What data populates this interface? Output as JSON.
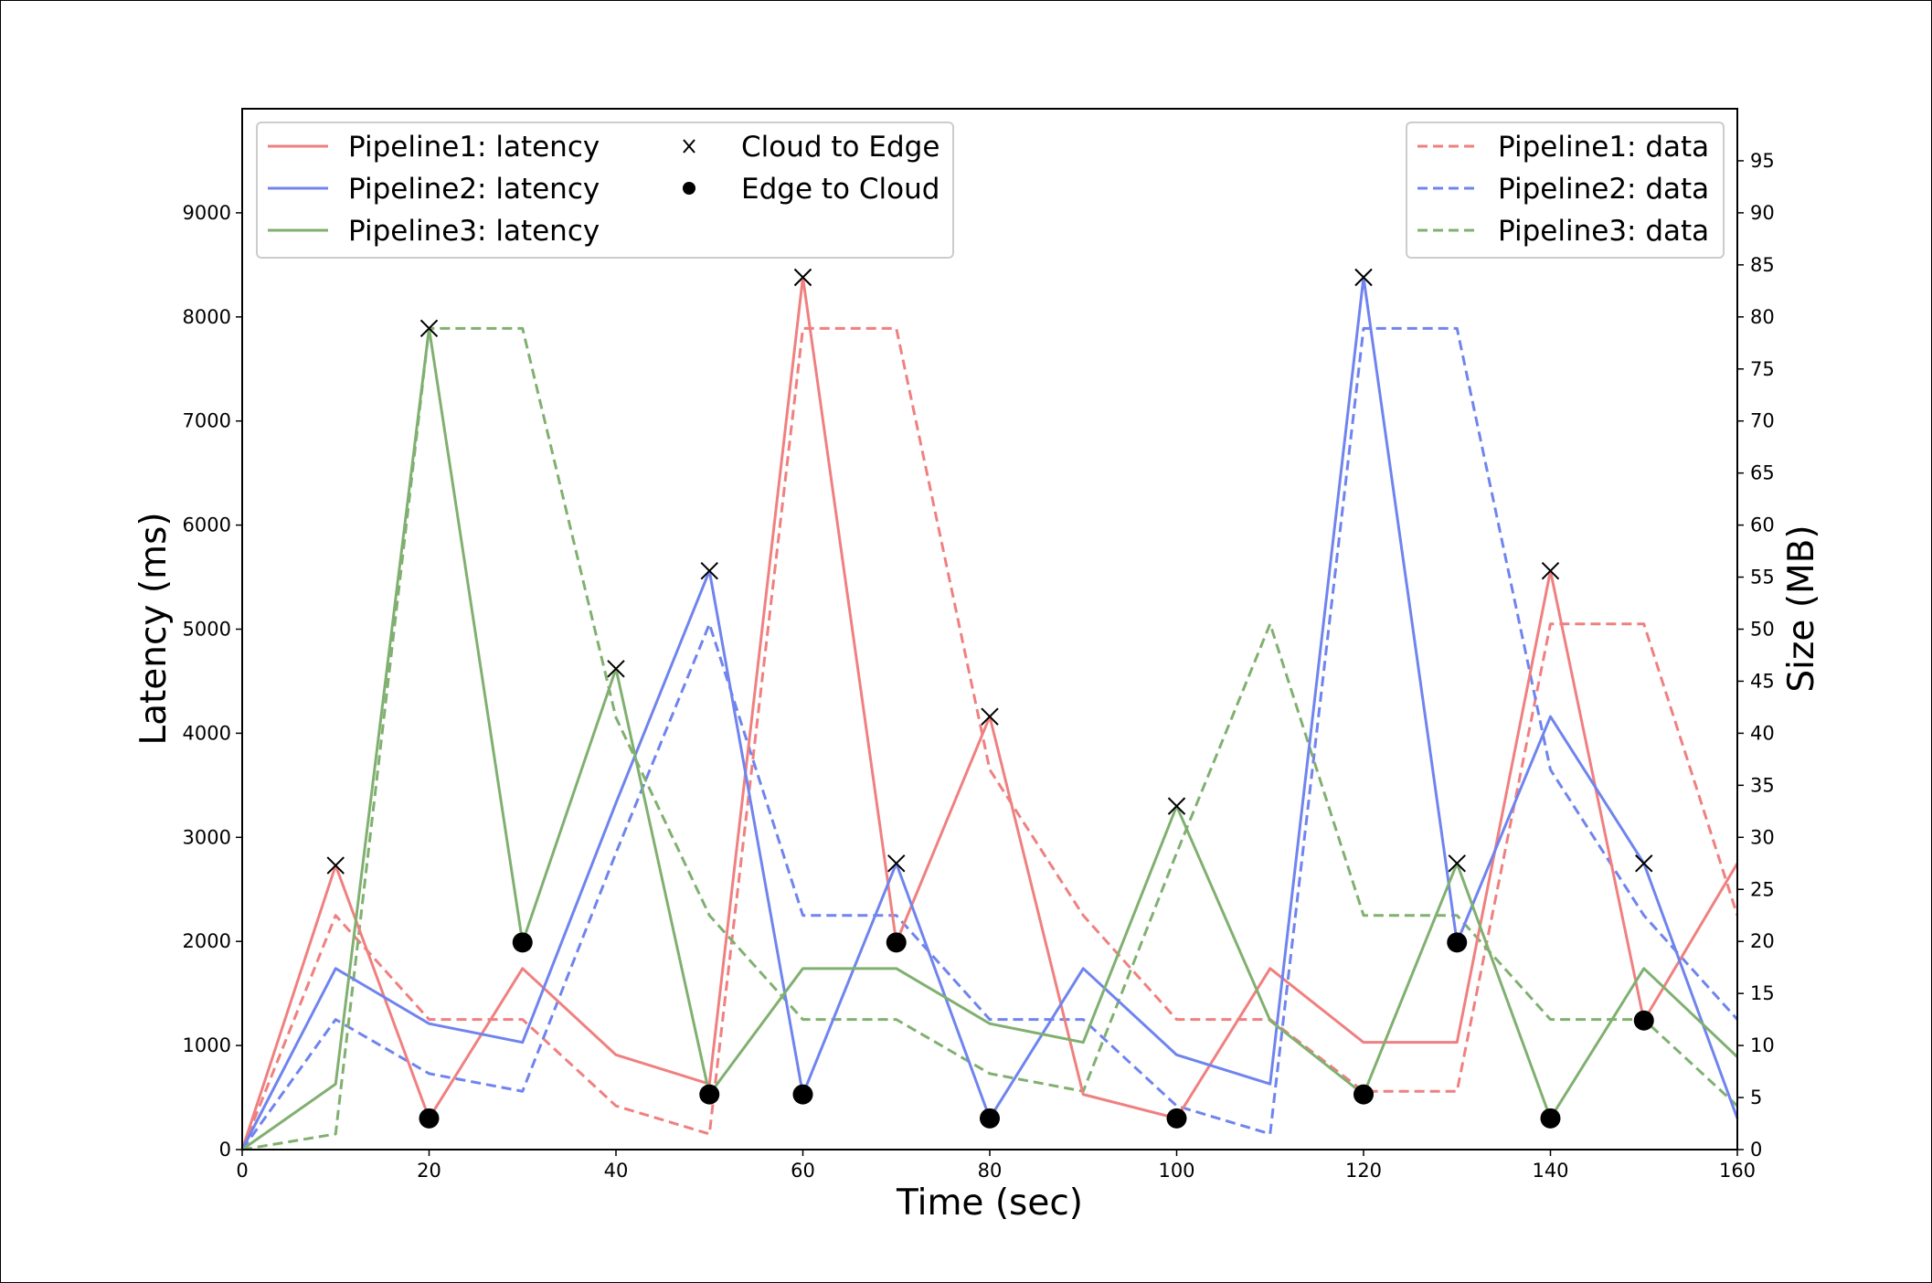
{
  "chart_data": {
    "type": "line",
    "xlabel": "Time (sec)",
    "ylabel": "Latency (ms)",
    "y2label": "Size (MB)",
    "xlim": [
      0,
      160
    ],
    "ylim": [
      0,
      10000
    ],
    "y2lim": [
      0,
      100
    ],
    "grid": false,
    "x_ticks": [
      "0",
      "20",
      "40",
      "60",
      "80",
      "100",
      "120",
      "140",
      "160"
    ],
    "y_ticks": [
      "0",
      "1000",
      "2000",
      "3000",
      "4000",
      "5000",
      "6000",
      "7000",
      "8000",
      "9000"
    ],
    "y2_ticks": [
      "0",
      "5",
      "10",
      "15",
      "20",
      "25",
      "30",
      "35",
      "40",
      "45",
      "50",
      "55",
      "60",
      "65",
      "70",
      "75",
      "80",
      "85",
      "90",
      "95"
    ],
    "x": [
      0,
      10,
      20,
      30,
      40,
      50,
      60,
      70,
      80,
      90,
      100,
      110,
      120,
      130,
      140,
      150,
      160
    ],
    "latency_series": [
      {
        "name": "Pipeline1: latency",
        "color": "#f08080",
        "values": [
          0,
          2730,
          300,
          1740,
          910,
          630,
          8380,
          1990,
          4160,
          530,
          300,
          1740,
          1030,
          1030,
          5560,
          1240,
          2750
        ]
      },
      {
        "name": "Pipeline2: latency",
        "color": "#6f84ee",
        "values": [
          0,
          1740,
          1210,
          1030,
          3330,
          5560,
          530,
          2750,
          300,
          1740,
          910,
          630,
          8380,
          1990,
          4160,
          2750,
          300
        ]
      },
      {
        "name": "Pipeline3: latency",
        "color": "#80b070",
        "values": [
          0,
          630,
          7890,
          1990,
          4620,
          530,
          1740,
          1740,
          1210,
          1030,
          3300,
          1240,
          530,
          2750,
          300,
          1740,
          890
        ]
      }
    ],
    "data_series": [
      {
        "name": "Pipeline1: data",
        "color": "#f08080",
        "values": [
          0,
          22.5,
          12.5,
          12.5,
          4.2,
          1.5,
          78.9,
          78.9,
          36.5,
          22.5,
          12.5,
          12.5,
          5.6,
          5.6,
          50.5,
          50.5,
          22.5
        ]
      },
      {
        "name": "Pipeline2: data",
        "color": "#6f84ee",
        "values": [
          0,
          12.5,
          7.3,
          5.6,
          28.5,
          50.5,
          22.5,
          22.5,
          12.5,
          12.5,
          4.2,
          1.5,
          78.9,
          78.9,
          36.5,
          22.5,
          12.5
        ]
      },
      {
        "name": "Pipeline3: data",
        "color": "#80b070",
        "values": [
          0,
          1.5,
          78.9,
          78.9,
          41.5,
          22.5,
          12.5,
          12.5,
          7.3,
          5.6,
          28.5,
          50.5,
          22.5,
          22.5,
          12.5,
          12.5,
          4.2
        ]
      }
    ],
    "markers": [
      {
        "name": "Cloud to Edge",
        "symbol": "x",
        "points": [
          [
            10,
            2730
          ],
          [
            20,
            7890
          ],
          [
            40,
            4620
          ],
          [
            50,
            5560
          ],
          [
            60,
            8380
          ],
          [
            70,
            2750
          ],
          [
            80,
            4160
          ],
          [
            100,
            3300
          ],
          [
            120,
            8380
          ],
          [
            130,
            2750
          ],
          [
            140,
            5560
          ],
          [
            150,
            2750
          ]
        ]
      },
      {
        "name": "Edge to Cloud",
        "symbol": "dot",
        "points": [
          [
            20,
            300
          ],
          [
            30,
            1990
          ],
          [
            50,
            530
          ],
          [
            60,
            530
          ],
          [
            70,
            1990
          ],
          [
            80,
            300
          ],
          [
            100,
            300
          ],
          [
            120,
            530
          ],
          [
            130,
            1990
          ],
          [
            140,
            300
          ],
          [
            150,
            1240
          ]
        ]
      }
    ],
    "legends": {
      "left": {
        "placement": "upper-left",
        "col1": [
          "Pipeline1: latency",
          "Pipeline2: latency",
          "Pipeline3: latency"
        ],
        "col2": [
          "Cloud to Edge",
          "Edge to Cloud"
        ]
      },
      "right": {
        "placement": "upper-right",
        "items": [
          "Pipeline1: data",
          "Pipeline2: data",
          "Pipeline3: data"
        ]
      }
    }
  }
}
